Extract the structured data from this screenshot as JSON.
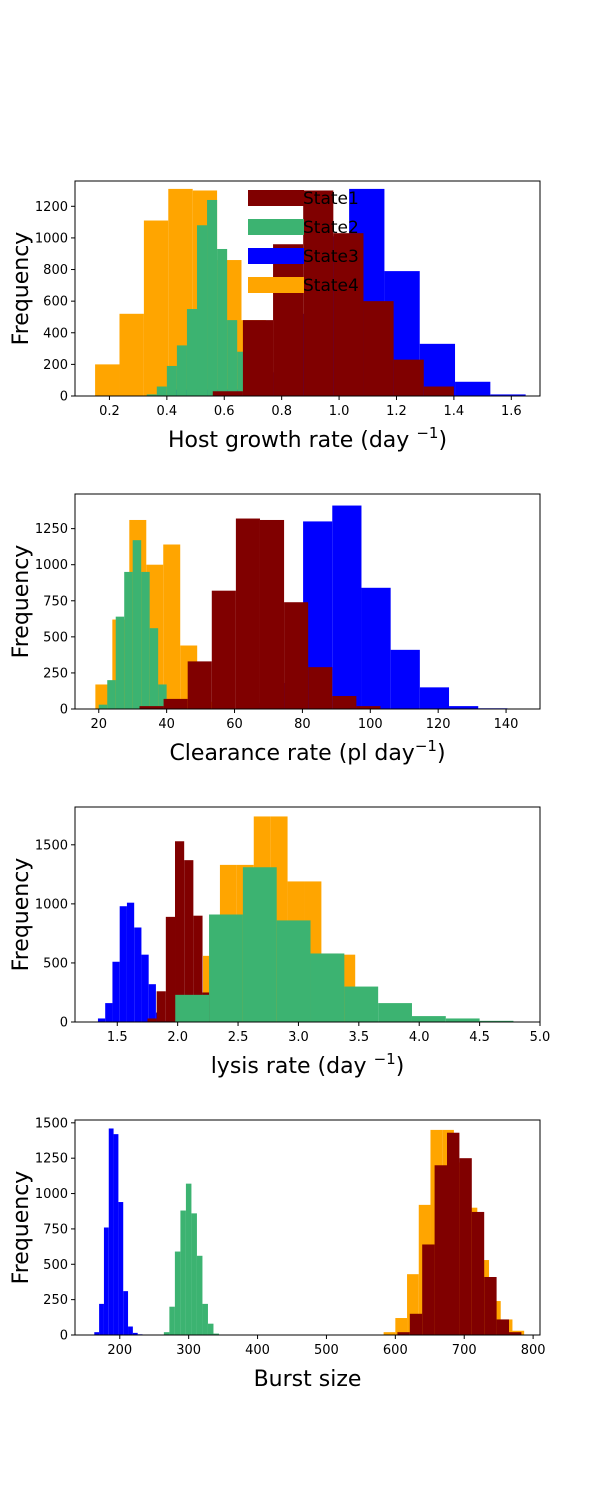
{
  "colors": {
    "State1": "#800000",
    "State2": "#3cb371",
    "State3": "#0000ff",
    "State4": "#ffa500"
  },
  "chart_data": [
    {
      "type": "histogram",
      "xlabel": "Host growth rate (day ",
      "xlabel_sup": "−1",
      "xlabel_end": ")",
      "ylabel": "Frequency",
      "xlim": [
        0.08,
        1.7
      ],
      "ylim": [
        0,
        1360
      ],
      "xticks": [
        0.2,
        0.4,
        0.6,
        0.8,
        1.0,
        1.2,
        1.4,
        1.6
      ],
      "xtick_labels": [
        "0.2",
        "0.4",
        "0.6",
        "0.8",
        "1.0",
        "1.2",
        "1.4",
        "1.6"
      ],
      "yticks": [
        0,
        200,
        400,
        600,
        800,
        1000,
        1200
      ],
      "legend": {
        "position": "top-center",
        "entries": [
          "State1",
          "State2",
          "State3",
          "State4"
        ]
      },
      "series": [
        {
          "name": "State4",
          "edges": [
            0.15,
            0.235,
            0.32,
            0.405,
            0.49,
            0.575,
            0.66,
            0.745,
            0.83
          ],
          "counts": [
            200,
            520,
            1110,
            1310,
            1300,
            860,
            480,
            100
          ]
        },
        {
          "name": "State3",
          "edges": [
            0.42,
            0.543,
            0.666,
            0.789,
            0.912,
            1.035,
            1.158,
            1.281,
            1.404,
            1.527,
            1.65
          ],
          "counts": [
            40,
            40,
            150,
            520,
            1010,
            1310,
            790,
            330,
            90,
            10
          ]
        },
        {
          "name": "State2",
          "edges": [
            0.33,
            0.365,
            0.4,
            0.435,
            0.47,
            0.505,
            0.54,
            0.575,
            0.61,
            0.645,
            0.68,
            0.715,
            0.75
          ],
          "counts": [
            10,
            60,
            190,
            320,
            550,
            1080,
            1240,
            930,
            480,
            280,
            110,
            50
          ]
        },
        {
          "name": "State1",
          "edges": [
            0.56,
            0.665,
            0.77,
            0.875,
            0.98,
            1.085,
            1.19,
            1.295,
            1.4
          ],
          "counts": [
            30,
            480,
            960,
            1300,
            1030,
            600,
            230,
            60
          ]
        }
      ]
    },
    {
      "type": "histogram",
      "xlabel": "Clearance rate (pl day",
      "xlabel_sup": "−1",
      "xlabel_end": ")",
      "ylabel": "Frequency",
      "xlim": [
        13,
        150
      ],
      "ylim": [
        0,
        1490
      ],
      "xticks": [
        20,
        40,
        60,
        80,
        100,
        120,
        140
      ],
      "xtick_labels": [
        "20",
        "40",
        "60",
        "80",
        "100",
        "120",
        "140"
      ],
      "yticks": [
        0,
        250,
        500,
        750,
        1000,
        1250
      ],
      "series": [
        {
          "name": "State4",
          "edges": [
            19,
            24,
            29,
            34,
            39,
            44,
            49,
            54
          ],
          "counts": [
            170,
            620,
            1310,
            1000,
            1140,
            440,
            50
          ]
        },
        {
          "name": "State3",
          "edges": [
            63,
            71.6,
            80.2,
            88.8,
            97.4,
            106,
            114.6,
            123.2,
            131.8,
            140.4,
            145
          ],
          "counts": [
            40,
            180,
            1300,
            1410,
            840,
            410,
            150,
            20,
            5,
            0
          ]
        },
        {
          "name": "State2",
          "edges": [
            20,
            22.5,
            25,
            27.5,
            30,
            32.5,
            35,
            37.5,
            40,
            42.5,
            45
          ],
          "counts": [
            30,
            200,
            640,
            950,
            1170,
            950,
            560,
            170,
            60,
            15
          ]
        },
        {
          "name": "State1",
          "edges": [
            32,
            39.1,
            46.2,
            53.3,
            60.4,
            67.5,
            74.6,
            81.7,
            88.8,
            95.9,
            103
          ],
          "counts": [
            20,
            70,
            330,
            820,
            1320,
            1310,
            740,
            290,
            90,
            20
          ]
        }
      ]
    },
    {
      "type": "histogram",
      "xlabel": "lysis rate (day ",
      "xlabel_sup": "−1",
      "xlabel_end": ")",
      "ylabel": "Frequency",
      "xlim": [
        1.15,
        5.0
      ],
      "ylim": [
        0,
        1820
      ],
      "xticks": [
        1.5,
        2.0,
        2.5,
        3.0,
        3.5,
        4.0,
        4.5,
        5.0
      ],
      "xtick_labels": [
        "1.5",
        "2.0",
        "2.5",
        "3.0",
        "3.5",
        "4.0",
        "4.5",
        "5.0"
      ],
      "yticks": [
        0,
        500,
        1000,
        1500
      ],
      "series": [
        {
          "name": "State4",
          "edges": [
            1.93,
            2.07,
            2.21,
            2.35,
            2.49,
            2.63,
            2.77,
            2.91,
            3.05,
            3.19,
            3.33,
            3.47
          ],
          "counts": [
            40,
            180,
            560,
            1330,
            1330,
            1740,
            1740,
            1190,
            1190,
            580,
            570
          ]
        },
        {
          "name": "State3",
          "edges": [
            1.34,
            1.4,
            1.46,
            1.52,
            1.58,
            1.64,
            1.7,
            1.76,
            1.82,
            1.88,
            1.94
          ],
          "counts": [
            30,
            160,
            510,
            980,
            1010,
            800,
            570,
            320,
            80,
            10
          ]
        },
        {
          "name": "State1",
          "edges": [
            1.75,
            1.826,
            1.902,
            1.978,
            2.054,
            2.13,
            2.206,
            2.282,
            2.358
          ],
          "counts": [
            30,
            260,
            890,
            1530,
            1370,
            900,
            250,
            50
          ]
        },
        {
          "name": "State2",
          "edges": [
            1.98,
            2.26,
            2.54,
            2.82,
            3.1,
            3.38,
            3.66,
            3.94,
            4.22,
            4.5,
            4.78
          ],
          "counts": [
            230,
            910,
            1310,
            860,
            580,
            300,
            160,
            50,
            30,
            10
          ]
        }
      ]
    },
    {
      "type": "histogram",
      "xlabel": "Burst size",
      "xlabel_sup": "",
      "xlabel_end": "",
      "ylabel": "Frequency",
      "xlim": [
        135,
        810
      ],
      "ylim": [
        0,
        1520
      ],
      "xticks": [
        200,
        300,
        400,
        500,
        600,
        700,
        800
      ],
      "xtick_labels": [
        "200",
        "300",
        "400",
        "500",
        "600",
        "700",
        "800"
      ],
      "yticks": [
        0,
        250,
        500,
        750,
        1000,
        1250,
        1500
      ],
      "series": [
        {
          "name": "State3",
          "edges": [
            163,
            170,
            177,
            184,
            191,
            198,
            205,
            212,
            219,
            226,
            233
          ],
          "counts": [
            20,
            220,
            760,
            1460,
            1420,
            940,
            310,
            60,
            15,
            5
          ]
        },
        {
          "name": "State2",
          "edges": [
            264,
            272,
            280,
            288,
            296,
            304,
            312,
            320,
            328,
            336,
            344
          ],
          "counts": [
            20,
            200,
            590,
            880,
            1070,
            860,
            560,
            220,
            80,
            10
          ]
        },
        {
          "name": "State4",
          "edges": [
            583,
            600,
            617,
            634,
            651,
            668,
            685,
            702,
            719,
            736,
            753,
            770,
            787
          ],
          "counts": [
            20,
            120,
            430,
            920,
            1450,
            1450,
            1220,
            900,
            530,
            240,
            110,
            30
          ]
        },
        {
          "name": "State1",
          "edges": [
            603,
            621,
            639,
            657,
            675,
            693,
            711,
            729,
            747,
            765,
            783
          ],
          "counts": [
            20,
            150,
            640,
            1200,
            1430,
            1250,
            870,
            410,
            110,
            20
          ]
        }
      ]
    }
  ]
}
